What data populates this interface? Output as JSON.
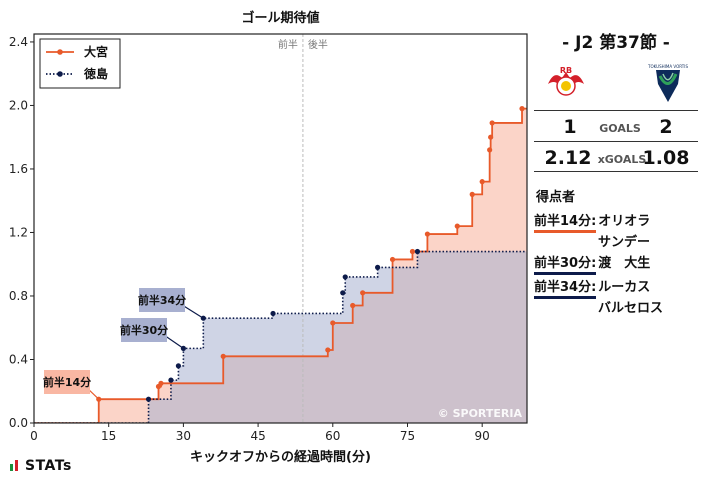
{
  "chart_data": {
    "type": "line",
    "step": true,
    "title": "ゴール期待値",
    "xlabel": "キックオフからの経過時間(分)",
    "ylabel": "",
    "xlim": [
      0,
      99
    ],
    "ylim": [
      0,
      2.45
    ],
    "xticks": [
      0,
      15,
      30,
      45,
      60,
      75,
      90
    ],
    "yticks": [
      0.0,
      0.4,
      0.8,
      1.2,
      1.6,
      2.0,
      2.4
    ],
    "halftime": 54,
    "halftime_labels": [
      "前半",
      "後半"
    ],
    "legend": "top-left",
    "grid": false,
    "series": [
      {
        "name": "大宮",
        "color": "#e85a2a",
        "fill": "#f9b7a3",
        "points": [
          [
            13,
            0.15
          ],
          [
            25,
            0.23
          ],
          [
            25.5,
            0.25
          ],
          [
            38,
            0.42
          ],
          [
            59,
            0.46
          ],
          [
            60,
            0.63
          ],
          [
            64,
            0.74
          ],
          [
            66,
            0.82
          ],
          [
            72,
            1.03
          ],
          [
            76,
            1.08
          ],
          [
            79,
            1.19
          ],
          [
            85,
            1.24
          ],
          [
            88,
            1.44
          ],
          [
            90,
            1.52
          ],
          [
            91.5,
            1.72
          ],
          [
            91.7,
            1.8
          ],
          [
            92,
            1.89
          ],
          [
            98,
            1.98
          ],
          [
            101,
            2.12
          ],
          [
            106,
            2.12
          ]
        ],
        "end": 106
      },
      {
        "name": "徳島",
        "color": "#0d1b4a",
        "fill": "#a8b0d0",
        "points": [
          [
            23,
            0.15
          ],
          [
            27.5,
            0.27
          ],
          [
            29,
            0.36
          ],
          [
            30,
            0.47
          ],
          [
            34,
            0.66
          ],
          [
            48,
            0.69
          ],
          [
            62,
            0.82
          ],
          [
            62.5,
            0.92
          ],
          [
            69,
            0.98
          ],
          [
            77,
            1.08
          ],
          [
            106,
            1.08
          ]
        ],
        "end": 106
      }
    ],
    "annotations": [
      {
        "text": "前半14分",
        "x": 13,
        "y": 0.15,
        "team": "home"
      },
      {
        "text": "前半30分",
        "x": 30,
        "y": 0.47,
        "team": "away"
      },
      {
        "text": "前半34分",
        "x": 34,
        "y": 0.66,
        "team": "away"
      }
    ],
    "watermark": "© SPORTERIA"
  },
  "match": {
    "title": "-  J2 第37節  -",
    "home_goals": "1",
    "away_goals": "2",
    "goals_label": "GOALS",
    "home_xg": "2.12",
    "away_xg": "1.08",
    "xg_label": "xGOALS",
    "home_crest_text": "RB",
    "away_crest_text": "TOKUSHIMA VORTIS"
  },
  "scorers": {
    "heading": "得点者",
    "list": [
      {
        "time": "前半14分:",
        "name": "オリオラ",
        "name2": "サンデー",
        "team": "home"
      },
      {
        "time": "前半30分:",
        "name": "渡　大生",
        "name2": "",
        "team": "away"
      },
      {
        "time": "前半34分:",
        "name": "ルーカス",
        "name2": "バルセロス",
        "team": "away"
      }
    ]
  },
  "brand": "STATs",
  "colors": {
    "home": "#e85a2a",
    "away": "#0d1b4a",
    "halftime_line": "#bbbbbb"
  }
}
